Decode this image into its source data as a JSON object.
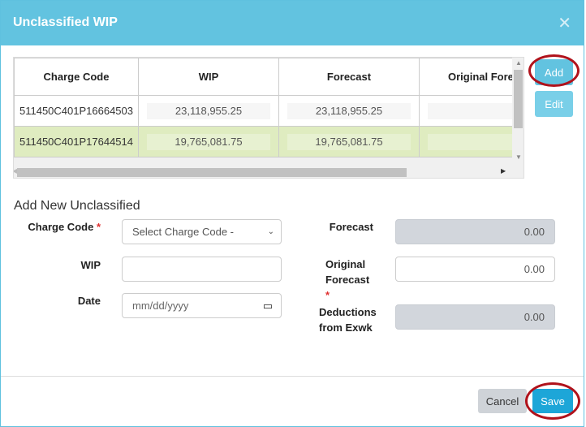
{
  "modal": {
    "title": "Unclassified WIP",
    "close_icon": "close-icon"
  },
  "table": {
    "columns": [
      "Charge Code",
      "WIP",
      "Forecast",
      "Original Forecast"
    ],
    "rows": [
      {
        "charge_code": "511450C401P16664503",
        "wip": "23,118,955.25",
        "forecast": "23,118,955.25",
        "original_forecast": ""
      },
      {
        "charge_code": "511450C401P17644514",
        "wip": "19,765,081.75",
        "forecast": "19,765,081.75",
        "original_forecast": ""
      }
    ],
    "selected_row": 1
  },
  "actions": {
    "add": "Add",
    "edit": "Edit"
  },
  "form": {
    "title": "Add New Unclassified",
    "charge_code_label": "Charge Code",
    "charge_code_placeholder": "Select Charge Code -",
    "wip_label": "WIP",
    "wip_value": "",
    "date_label": "Date",
    "date_placeholder": "mm/dd/yyyy",
    "forecast_label": "Forecast",
    "forecast_value": "0.00",
    "original_forecast_label_1": "Original",
    "original_forecast_label_2": "Forecast",
    "original_forecast_value": "0.00",
    "deductions_label_1": "Deductions",
    "deductions_label_2": "from Exwk",
    "deductions_value": "0.00",
    "required_mark": "*"
  },
  "footer": {
    "cancel": "Cancel",
    "save": "Save"
  },
  "colors": {
    "header": "#62c3e0",
    "selected_row": "#dfecc0",
    "highlight_ring": "#b0121b",
    "save": "#1da6d8"
  }
}
